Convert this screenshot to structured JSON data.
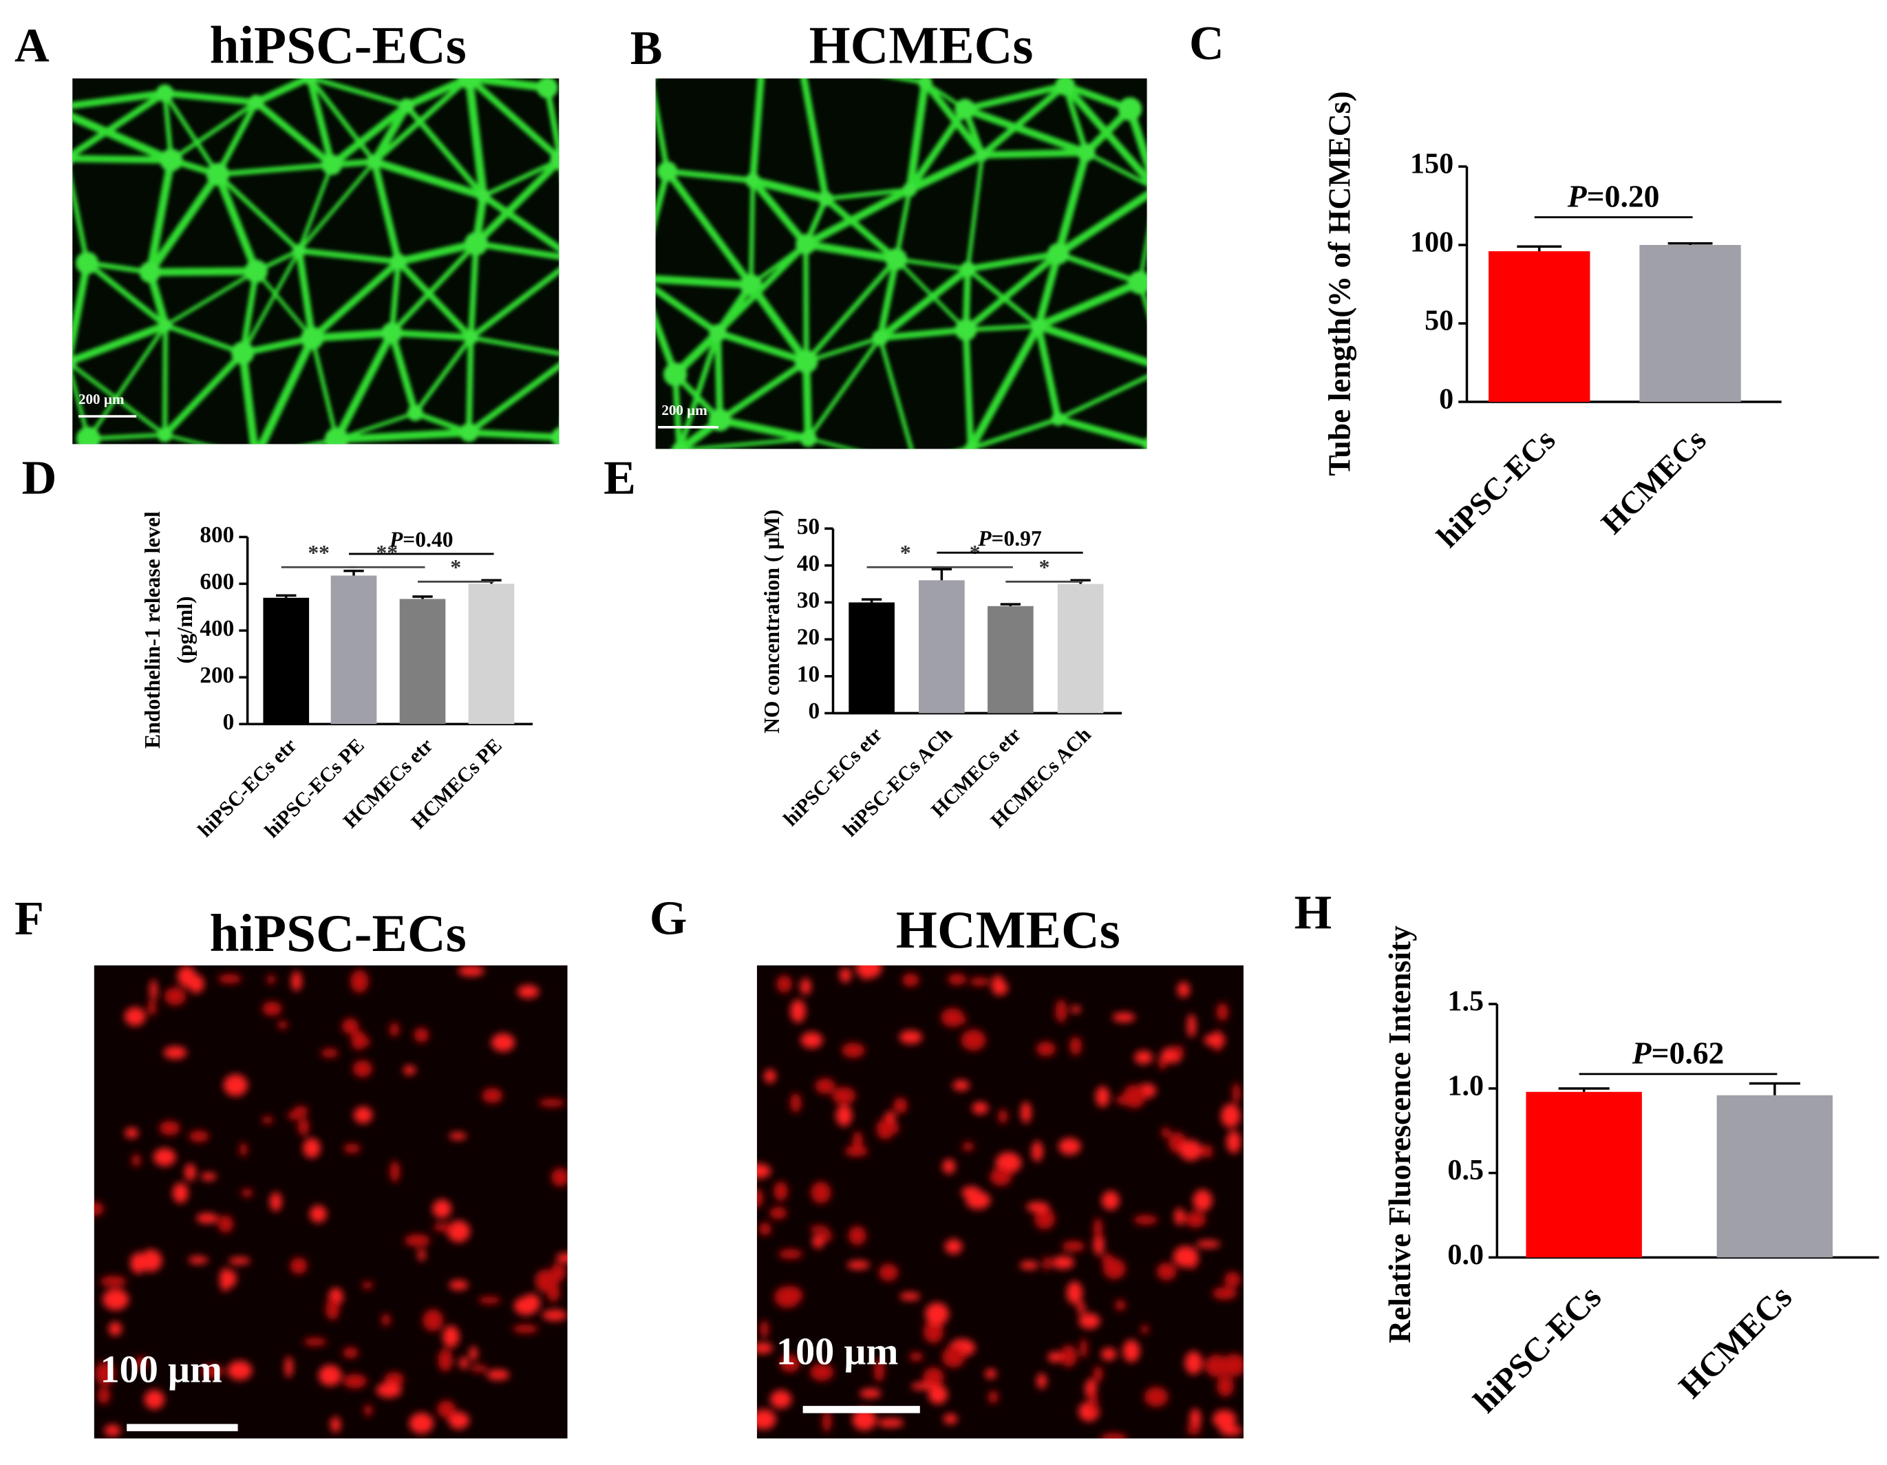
{
  "panels": {
    "A": {
      "label": "A",
      "title": "hiPSC-ECs",
      "scale_bar": "200 µm"
    },
    "B": {
      "label": "B",
      "title": "HCMECs",
      "scale_bar": "200 µm"
    },
    "C": {
      "label": "C"
    },
    "D": {
      "label": "D"
    },
    "E": {
      "label": "E"
    },
    "F": {
      "label": "F",
      "title": "hiPSC-ECs",
      "scale_bar": "100 µm"
    },
    "G": {
      "label": "G",
      "title": "HCMECs",
      "scale_bar": "100 µm"
    },
    "H": {
      "label": "H"
    }
  },
  "chart_data": [
    {
      "type": "bar",
      "ylabel": "Tube length(% of HCMECs)",
      "categories": [
        "hiPSC-ECs",
        "HCMECs"
      ],
      "values": [
        96,
        100
      ],
      "errors": [
        3,
        1
      ],
      "colors": [
        "#ff0000",
        "#a0a0a8"
      ],
      "ylim": [
        0,
        150
      ],
      "yticks": [
        0,
        50,
        100,
        150
      ],
      "annotations": [
        {
          "symbol": "P",
          "text": "=0.20"
        }
      ]
    },
    {
      "type": "bar",
      "ylabel": [
        "Endothelin-1 release level",
        "(pg/ml)"
      ],
      "categories": [
        "hiPSC-ECs etr",
        "hiPSC-ECs PE",
        "HCMECs etr",
        "HCMECs PE"
      ],
      "values": [
        540,
        635,
        535,
        600
      ],
      "errors": [
        10,
        20,
        10,
        15
      ],
      "colors": [
        "#000000",
        "#a0a0a8",
        "#7f7f7f",
        "#d3d3d3"
      ],
      "ylim": [
        0,
        800
      ],
      "yticks": [
        0,
        200,
        400,
        600,
        800
      ],
      "annotations": [
        {
          "text": "**"
        },
        {
          "text": "**"
        },
        {
          "symbol": "P",
          "text": "=0.40"
        },
        {
          "text": "*"
        }
      ]
    },
    {
      "type": "bar",
      "ylabel": "NO concentration ( μM)",
      "categories": [
        "hiPSC-ECs etr",
        "hiPSC-ECs ACh",
        "HCMECs etr",
        "HCMECs ACh"
      ],
      "values": [
        30,
        36,
        29,
        35
      ],
      "errors": [
        0.8,
        3,
        0.5,
        1
      ],
      "colors": [
        "#000000",
        "#a0a0a8",
        "#7f7f7f",
        "#d3d3d3"
      ],
      "ylim": [
        0,
        50
      ],
      "yticks": [
        0,
        10,
        20,
        30,
        40,
        50
      ],
      "annotations": [
        {
          "text": "*"
        },
        {
          "text": "*"
        },
        {
          "symbol": "P",
          "text": "=0.97"
        },
        {
          "text": "*"
        }
      ]
    },
    {
      "type": "bar",
      "ylabel": "Relative Fluorescence Intensity",
      "categories": [
        "hiPSC-ECs",
        "HCMECs"
      ],
      "values": [
        0.98,
        0.96
      ],
      "errors": [
        0.02,
        0.07
      ],
      "colors": [
        "#ff0000",
        "#a0a0a8"
      ],
      "ylim": [
        0,
        1.5
      ],
      "yticks": [
        {
          "value": 0,
          "label": "0.0"
        },
        0.5,
        {
          "value": 1,
          "label": "1.0"
        },
        1.5
      ],
      "annotations": [
        {
          "symbol": "P",
          "text": "=0.62"
        }
      ]
    }
  ]
}
